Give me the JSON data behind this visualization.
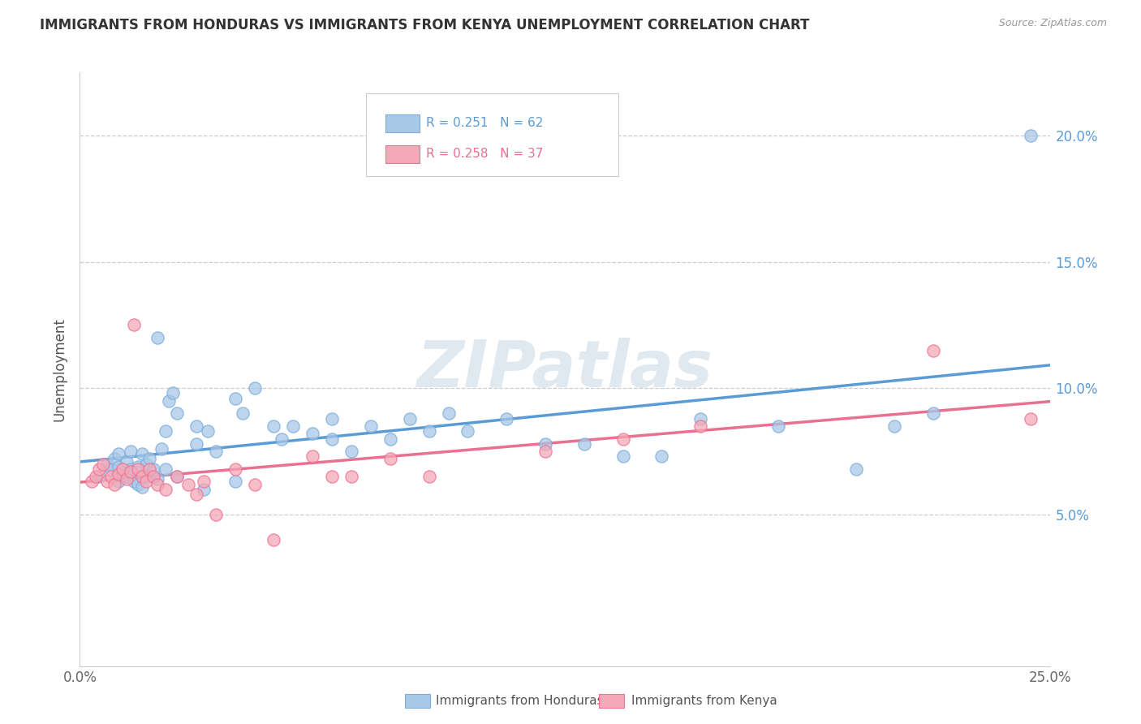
{
  "title": "IMMIGRANTS FROM HONDURAS VS IMMIGRANTS FROM KENYA UNEMPLOYMENT CORRELATION CHART",
  "source": "Source: ZipAtlas.com",
  "ylabel": "Unemployment",
  "xlim": [
    0,
    0.25
  ],
  "ylim": [
    -0.01,
    0.225
  ],
  "ytick_positions": [
    0.05,
    0.1,
    0.15,
    0.2
  ],
  "ytick_labels": [
    "5.0%",
    "10.0%",
    "15.0%",
    "20.0%"
  ],
  "xtick_positions": [
    0.0,
    0.05,
    0.1,
    0.15,
    0.2,
    0.25
  ],
  "xtick_labels": [
    "0.0%",
    "",
    "",
    "",
    "",
    "25.0%"
  ],
  "legend_label1": "Immigrants from Honduras",
  "legend_label2": "Immigrants from Kenya",
  "color_honduras": "#a8c8e8",
  "color_kenya": "#f4a8b8",
  "color_honduras_edge": "#7aacda",
  "color_kenya_edge": "#f07090",
  "color_honduras_line": "#5b9bd5",
  "color_kenya_line": "#e87090",
  "watermark": "ZIPatlas",
  "r_honduras": 0.251,
  "n_honduras": 62,
  "r_kenya": 0.258,
  "n_kenya": 37,
  "honduras_x": [
    0.005,
    0.007,
    0.008,
    0.009,
    0.01,
    0.01,
    0.01,
    0.012,
    0.012,
    0.013,
    0.013,
    0.014,
    0.015,
    0.015,
    0.016,
    0.016,
    0.017,
    0.018,
    0.018,
    0.019,
    0.02,
    0.02,
    0.021,
    0.022,
    0.022,
    0.023,
    0.024,
    0.025,
    0.025,
    0.03,
    0.03,
    0.032,
    0.033,
    0.035,
    0.04,
    0.04,
    0.042,
    0.045,
    0.05,
    0.052,
    0.055,
    0.06,
    0.065,
    0.065,
    0.07,
    0.075,
    0.08,
    0.085,
    0.09,
    0.095,
    0.1,
    0.11,
    0.12,
    0.13,
    0.14,
    0.15,
    0.16,
    0.18,
    0.2,
    0.21,
    0.22,
    0.245
  ],
  "honduras_y": [
    0.065,
    0.07,
    0.068,
    0.072,
    0.063,
    0.069,
    0.074,
    0.065,
    0.071,
    0.068,
    0.075,
    0.063,
    0.069,
    0.062,
    0.074,
    0.061,
    0.07,
    0.065,
    0.072,
    0.068,
    0.064,
    0.12,
    0.076,
    0.083,
    0.068,
    0.095,
    0.098,
    0.09,
    0.065,
    0.078,
    0.085,
    0.06,
    0.083,
    0.075,
    0.096,
    0.063,
    0.09,
    0.1,
    0.085,
    0.08,
    0.085,
    0.082,
    0.088,
    0.08,
    0.075,
    0.085,
    0.08,
    0.088,
    0.083,
    0.09,
    0.083,
    0.088,
    0.078,
    0.078,
    0.073,
    0.073,
    0.088,
    0.085,
    0.068,
    0.085,
    0.09,
    0.2
  ],
  "kenya_x": [
    0.003,
    0.004,
    0.005,
    0.006,
    0.007,
    0.008,
    0.009,
    0.01,
    0.011,
    0.012,
    0.013,
    0.014,
    0.015,
    0.016,
    0.017,
    0.018,
    0.019,
    0.02,
    0.022,
    0.025,
    0.028,
    0.03,
    0.032,
    0.035,
    0.04,
    0.045,
    0.05,
    0.06,
    0.065,
    0.07,
    0.08,
    0.09,
    0.12,
    0.14,
    0.16,
    0.22,
    0.245
  ],
  "kenya_y": [
    0.063,
    0.065,
    0.068,
    0.07,
    0.063,
    0.065,
    0.062,
    0.066,
    0.068,
    0.064,
    0.067,
    0.125,
    0.068,
    0.065,
    0.063,
    0.068,
    0.065,
    0.062,
    0.06,
    0.065,
    0.062,
    0.058,
    0.063,
    0.05,
    0.068,
    0.062,
    0.04,
    0.073,
    0.065,
    0.065,
    0.072,
    0.065,
    0.075,
    0.08,
    0.085,
    0.115,
    0.088
  ]
}
